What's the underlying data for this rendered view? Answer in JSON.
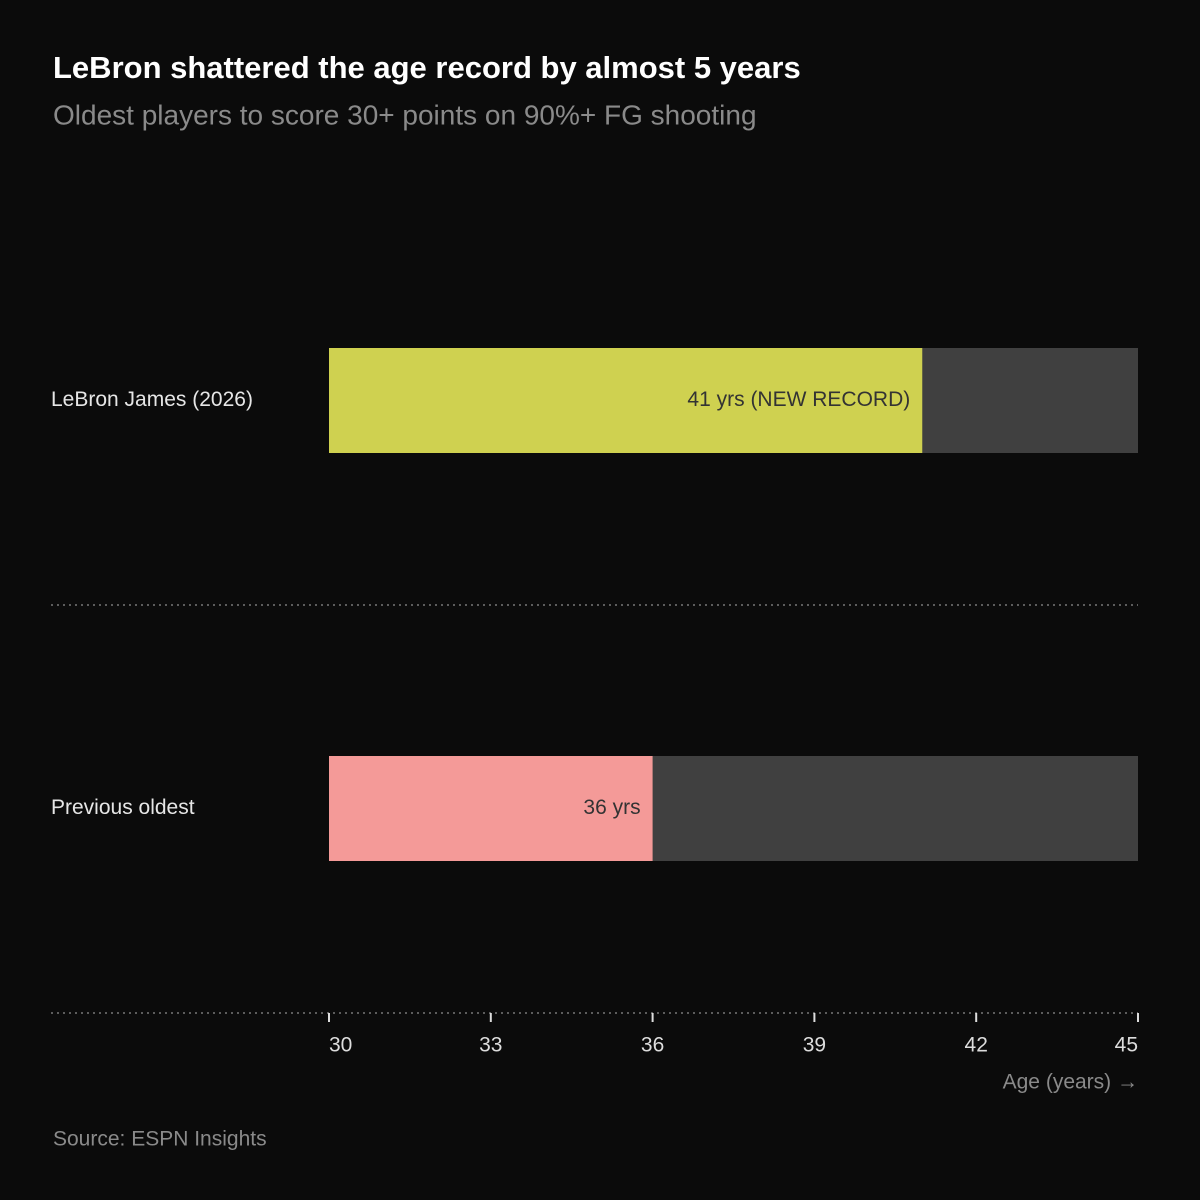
{
  "chart_data": {
    "type": "bar",
    "orientation": "horizontal",
    "title": "LeBron shattered the age record by almost 5 years",
    "subtitle": "Oldest players to score 30+ points on 90%+ FG shooting",
    "categories": [
      "LeBron James (2026)",
      "Previous oldest"
    ],
    "values": [
      41,
      36
    ],
    "value_labels": [
      "41 yrs (NEW RECORD)",
      "36 yrs"
    ],
    "colors": [
      "#cfd150",
      "#f49a98"
    ],
    "track_color": "#404040",
    "xlim": [
      30,
      45
    ],
    "xticks": [
      30,
      33,
      36,
      39,
      42,
      45
    ],
    "x_label": "Age (years) →",
    "source": "Source: ESPN Insights"
  }
}
